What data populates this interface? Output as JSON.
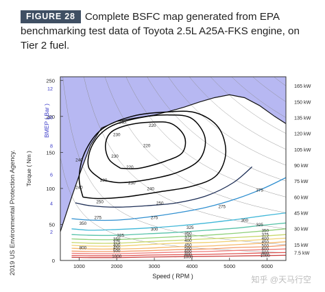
{
  "figure": {
    "badge": "FIGURE 28",
    "caption": "Complete BSFC map generated from EPA benchmarking test data of Toyota 2.5L A25A-FKS engine, on Tier 2 fuel.",
    "credit": "2019 US Environmental Protection Agency.",
    "watermark": "知乎 @天马行空"
  },
  "colors": {
    "infeasible_region": "#b7b8f2",
    "badge_bg": "#3f4f63",
    "contour_core": "#000000"
  },
  "chart_data": {
    "type": "contour",
    "xlabel": "Speed ( RPM )",
    "ylabel_left": "Torque ( Nm )",
    "ylabel_right": "BMEP ( Bar )",
    "xlim": [
      500,
      6500
    ],
    "ylim": [
      0,
      255
    ],
    "x_ticks": [
      1000,
      2000,
      3000,
      4000,
      5000,
      6000
    ],
    "y_ticks": [
      0,
      50,
      100,
      150,
      200,
      250
    ],
    "bmep_ticks": [
      2,
      4,
      6,
      8,
      10,
      12
    ],
    "grid": false,
    "wot_curve": {
      "x": [
        500,
        800,
        1000,
        1300,
        1600,
        2000,
        2400,
        3000,
        3400,
        3800,
        4200,
        4600,
        5000,
        5400,
        5800,
        6200,
        6500
      ],
      "y": [
        40,
        88,
        118,
        160,
        184,
        193,
        197,
        202,
        207,
        213,
        220,
        226,
        230,
        226,
        215,
        200,
        190
      ]
    },
    "bsfc_contours": [
      {
        "label": "220",
        "level": 220,
        "color": "#000000",
        "x": [
          2100,
          1800,
          1700,
          1850,
          2300,
          2900,
          3450,
          3800,
          3750,
          3300,
          2600,
          2100
        ],
        "y": [
          128,
          140,
          160,
          178,
          188,
          192,
          190,
          172,
          150,
          138,
          128,
          128
        ]
      },
      {
        "label": "230",
        "level": 230,
        "color": "#000000",
        "x": [
          1600,
          1250,
          1350,
          1800,
          2600,
          3400,
          4000,
          4350,
          4200,
          3600,
          2800,
          2100,
          1600
        ],
        "y": [
          112,
          130,
          160,
          185,
          198,
          202,
          197,
          170,
          140,
          122,
          112,
          108,
          112
        ]
      },
      {
        "label": "240",
        "level": 240,
        "color": "#000000",
        "x": [
          1100,
          1000,
          1150,
          1600,
          2400,
          3300,
          4100,
          4700,
          4900,
          4650,
          4000,
          3100,
          2200,
          1500,
          1100
        ],
        "y": [
          88,
          115,
          150,
          182,
          200,
          206,
          205,
          185,
          150,
          118,
          103,
          95,
          88,
          86,
          88
        ]
      },
      {
        "label": "250",
        "level": 250,
        "color": "#1c2d55",
        "x": [
          900,
          1300,
          2000,
          2800,
          3600,
          4400,
          5100,
          5600
        ],
        "y": [
          80,
          76,
          74,
          76,
          80,
          90,
          108,
          130
        ]
      },
      {
        "label": "275",
        "level": 275,
        "color": "#2f8fd0",
        "x": [
          800,
          1300,
          2000,
          2800,
          3600,
          4400,
          5200,
          5900,
          6500
        ],
        "y": [
          58,
          56,
          56,
          60,
          66,
          74,
          86,
          100,
          115
        ]
      },
      {
        "label": "300",
        "level": 300,
        "color": "#3fb7d8",
        "x": [
          800,
          1300,
          2000,
          2800,
          3600,
          4400,
          5200,
          5900,
          6500
        ],
        "y": [
          44,
          42,
          43,
          45,
          48,
          52,
          57,
          62,
          66
        ]
      },
      {
        "label": "325",
        "level": 325,
        "color": "#56c2a8",
        "x": [
          800,
          1300,
          2000,
          2800,
          3600,
          4400,
          5200,
          5900,
          6500
        ],
        "y": [
          36,
          35,
          35,
          37,
          39,
          42,
          45,
          49,
          52
        ]
      },
      {
        "label": "350",
        "level": 350,
        "color": "#8fd07a",
        "x": [
          800,
          1300,
          2000,
          2800,
          3600,
          4400,
          5200,
          5900,
          6500
        ],
        "y": [
          30,
          29,
          29,
          31,
          33,
          35,
          38,
          41,
          44
        ]
      },
      {
        "label": "375",
        "level": 375,
        "color": "#c8d86c",
        "x": [
          800,
          1300,
          2000,
          2800,
          3600,
          4400,
          5200,
          5900,
          6500
        ],
        "y": [
          25,
          24,
          24,
          26,
          28,
          30,
          32,
          34,
          36
        ]
      },
      {
        "label": "400",
        "level": 400,
        "color": "#f0d070",
        "x": [
          800,
          1300,
          2000,
          2800,
          3600,
          4400,
          5200,
          5900,
          6500
        ],
        "y": [
          21,
          20,
          20,
          22,
          24,
          25,
          27,
          29,
          31
        ]
      },
      {
        "label": "450",
        "level": 450,
        "color": "#f5b86a",
        "x": [
          800,
          1300,
          2000,
          2800,
          3600,
          4400,
          5200,
          5900,
          6500
        ],
        "y": [
          17,
          16,
          16,
          17,
          19,
          20,
          22,
          24,
          26
        ]
      },
      {
        "label": "500",
        "level": 500,
        "color": "#f29a6a",
        "x": [
          800,
          1300,
          2000,
          2800,
          3600,
          4400,
          5200,
          5900,
          6500
        ],
        "y": [
          13,
          12.5,
          12.5,
          13.5,
          15,
          16,
          18,
          19,
          21
        ]
      },
      {
        "label": "600",
        "level": 600,
        "color": "#ee7a78",
        "x": [
          800,
          1300,
          2000,
          2800,
          3600,
          4400,
          5200,
          5900,
          6500
        ],
        "y": [
          10,
          9.5,
          9.5,
          10.5,
          11.5,
          12.5,
          14,
          15,
          16
        ]
      },
      {
        "label": "800",
        "level": 800,
        "color": "#e0524f",
        "x": [
          800,
          1300,
          2000,
          2800,
          3600,
          4400,
          5200,
          5900,
          6500
        ],
        "y": [
          7,
          6.5,
          6.5,
          7.5,
          8,
          8.5,
          9.5,
          10.5,
          11
        ]
      },
      {
        "label": "1000",
        "level": 1000,
        "color": "#c83a3a",
        "x": [
          800,
          1300,
          2000,
          2800,
          3600,
          4400,
          5200,
          5900,
          6500
        ],
        "y": [
          4.5,
          4,
          4,
          4.8,
          5.2,
          5.6,
          6.2,
          6.8,
          7.2
        ]
      }
    ],
    "contour_labels": [
      {
        "text": "240",
        "x": 2150,
        "y": 192
      },
      {
        "text": "230",
        "x": 2000,
        "y": 175
      },
      {
        "text": "220",
        "x": 2950,
        "y": 188
      },
      {
        "text": "230",
        "x": 1950,
        "y": 145
      },
      {
        "text": "240",
        "x": 1000,
        "y": 140
      },
      {
        "text": "220",
        "x": 2800,
        "y": 160
      },
      {
        "text": "220",
        "x": 2350,
        "y": 130
      },
      {
        "text": "230",
        "x": 1650,
        "y": 112
      },
      {
        "text": "230",
        "x": 2400,
        "y": 108
      },
      {
        "text": "240",
        "x": 1000,
        "y": 102
      },
      {
        "text": "240",
        "x": 2900,
        "y": 100
      },
      {
        "text": "250",
        "x": 1550,
        "y": 82
      },
      {
        "text": "250",
        "x": 3150,
        "y": 80
      },
      {
        "text": "275",
        "x": 3000,
        "y": 60
      },
      {
        "text": "275",
        "x": 1500,
        "y": 60
      },
      {
        "text": "275",
        "x": 4800,
        "y": 75
      },
      {
        "text": "375",
        "x": 5800,
        "y": 98
      },
      {
        "text": "350",
        "x": 1100,
        "y": 52
      },
      {
        "text": "300",
        "x": 3000,
        "y": 44
      },
      {
        "text": "300",
        "x": 5400,
        "y": 56
      },
      {
        "text": "325",
        "x": 2100,
        "y": 35
      },
      {
        "text": "325",
        "x": 3950,
        "y": 46
      },
      {
        "text": "325",
        "x": 5800,
        "y": 50
      },
      {
        "text": "350",
        "x": 2000,
        "y": 30
      },
      {
        "text": "350",
        "x": 3900,
        "y": 38
      },
      {
        "text": "350",
        "x": 5950,
        "y": 42
      },
      {
        "text": "375",
        "x": 2000,
        "y": 26
      },
      {
        "text": "375",
        "x": 3900,
        "y": 33
      },
      {
        "text": "375",
        "x": 5950,
        "y": 36
      },
      {
        "text": "400",
        "x": 2000,
        "y": 22
      },
      {
        "text": "400",
        "x": 3900,
        "y": 28
      },
      {
        "text": "400",
        "x": 5950,
        "y": 31
      },
      {
        "text": "450",
        "x": 2000,
        "y": 18
      },
      {
        "text": "450",
        "x": 3900,
        "y": 22
      },
      {
        "text": "450",
        "x": 5950,
        "y": 26
      },
      {
        "text": "500",
        "x": 2000,
        "y": 14
      },
      {
        "text": "500",
        "x": 3900,
        "y": 17
      },
      {
        "text": "500",
        "x": 5950,
        "y": 21
      },
      {
        "text": "600",
        "x": 3900,
        "y": 13
      },
      {
        "text": "600",
        "x": 5950,
        "y": 16
      },
      {
        "text": "800",
        "x": 1100,
        "y": 18
      },
      {
        "text": "800",
        "x": 3900,
        "y": 9
      },
      {
        "text": "800",
        "x": 5950,
        "y": 11
      },
      {
        "text": "1000",
        "x": 2000,
        "y": 6
      },
      {
        "text": "1000",
        "x": 3900,
        "y": 5
      },
      {
        "text": "1000",
        "x": 5950,
        "y": 7
      }
    ],
    "power_lines": [
      {
        "label": "165 kW",
        "kw": 165
      },
      {
        "label": "150 kW",
        "kw": 150
      },
      {
        "label": "135 kW",
        "kw": 135
      },
      {
        "label": "120 kW",
        "kw": 120
      },
      {
        "label": "105 kW",
        "kw": 105
      },
      {
        "label": "90 kW",
        "kw": 90
      },
      {
        "label": "75 kW",
        "kw": 75
      },
      {
        "label": "60 kW",
        "kw": 60
      },
      {
        "label": "45 kW",
        "kw": 45
      },
      {
        "label": "30 kW",
        "kw": 30
      },
      {
        "label": "15 kW",
        "kw": 15
      },
      {
        "label": "7.5 kW",
        "kw": 7.5
      }
    ]
  }
}
